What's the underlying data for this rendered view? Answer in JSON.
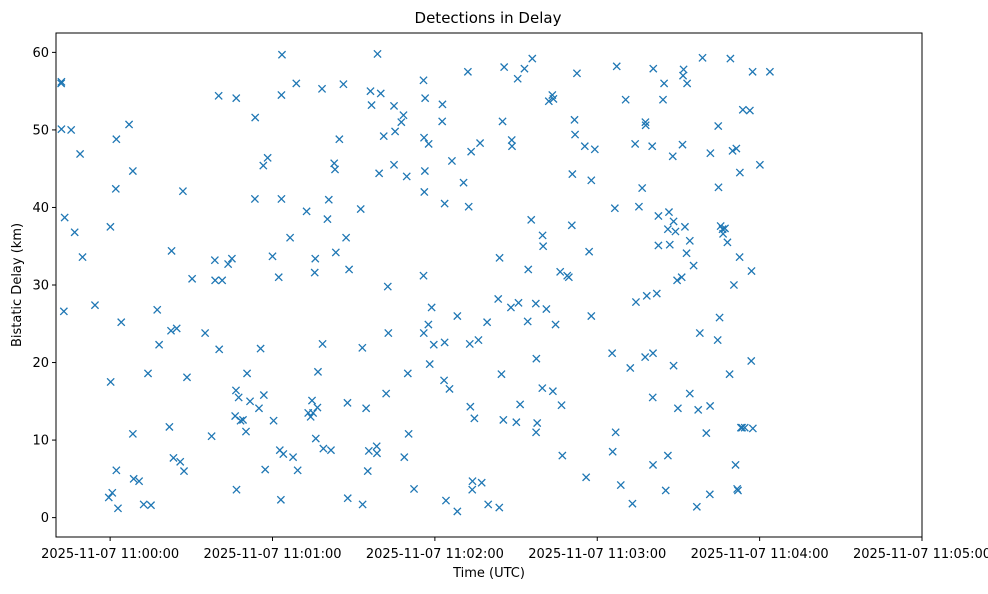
{
  "chart_data": {
    "type": "scatter",
    "title": "Detections in Delay",
    "xlabel": "Time (UTC)",
    "ylabel": "Bistatic Delay (km)",
    "x_unit": "seconds after 2025-11-07 11:00:00 UTC",
    "xlim": [
      -20,
      300
    ],
    "ylim": [
      -2.5,
      62.5
    ],
    "grid": false,
    "x_ticks": [
      {
        "value": 0,
        "label": "2025-11-07 11:00:00"
      },
      {
        "value": 60,
        "label": "2025-11-07 11:01:00"
      },
      {
        "value": 120,
        "label": "2025-11-07 11:02:00"
      },
      {
        "value": 180,
        "label": "2025-11-07 11:03:00"
      },
      {
        "value": 240,
        "label": "2025-11-07 11:04:00"
      },
      {
        "value": 300,
        "label": "2025-11-07 11:05:00"
      }
    ],
    "y_ticks": [
      0,
      10,
      20,
      30,
      40,
      50,
      60
    ],
    "marker": "x",
    "color": "#1f77b4",
    "series": [
      {
        "name": "",
        "points": [
          [
            -18.1,
            56.0
          ],
          [
            -18.0,
            50.1
          ],
          [
            -18.0,
            56.2
          ],
          [
            -17.1,
            26.6
          ],
          [
            -16.8,
            38.7
          ],
          [
            -14.4,
            50.0
          ],
          [
            -13.1,
            36.8
          ],
          [
            -11.1,
            46.9
          ],
          [
            -10.2,
            33.6
          ],
          [
            -5.6,
            27.4
          ],
          [
            -0.5,
            2.6
          ],
          [
            0.1,
            37.5
          ],
          [
            0.2,
            17.5
          ],
          [
            0.8,
            3.2
          ],
          [
            2.1,
            42.4
          ],
          [
            2.3,
            48.8
          ],
          [
            2.3,
            6.1
          ],
          [
            2.9,
            1.2
          ],
          [
            4.1,
            25.2
          ],
          [
            7.0,
            50.7
          ],
          [
            8.4,
            44.7
          ],
          [
            8.4,
            10.8
          ],
          [
            8.7,
            5.0
          ],
          [
            10.7,
            4.7
          ],
          [
            12.4,
            1.7
          ],
          [
            14.0,
            18.6
          ],
          [
            15.1,
            1.6
          ],
          [
            17.4,
            26.8
          ],
          [
            18.1,
            22.3
          ],
          [
            21.9,
            11.7
          ],
          [
            22.5,
            24.1
          ],
          [
            22.7,
            34.4
          ],
          [
            23.4,
            7.7
          ],
          [
            24.6,
            24.4
          ],
          [
            25.9,
            7.2
          ],
          [
            26.9,
            42.1
          ],
          [
            27.3,
            6.0
          ],
          [
            28.4,
            18.1
          ],
          [
            30.3,
            30.8
          ],
          [
            35.1,
            23.8
          ],
          [
            37.5,
            10.5
          ],
          [
            38.7,
            33.2
          ],
          [
            38.8,
            30.6
          ],
          [
            40.1,
            54.4
          ],
          [
            40.3,
            21.7
          ],
          [
            41.4,
            30.6
          ],
          [
            43.6,
            32.7
          ],
          [
            45.0,
            33.4
          ],
          [
            46.2,
            13.1
          ],
          [
            46.5,
            16.4
          ],
          [
            46.6,
            54.1
          ],
          [
            46.7,
            3.6
          ],
          [
            47.5,
            15.5
          ],
          [
            48.2,
            12.5
          ],
          [
            49.1,
            12.6
          ],
          [
            50.2,
            11.1
          ],
          [
            50.6,
            18.6
          ],
          [
            51.7,
            15.0
          ],
          [
            53.5,
            41.1
          ],
          [
            53.6,
            51.6
          ],
          [
            55.0,
            14.1
          ],
          [
            55.6,
            21.8
          ],
          [
            56.6,
            45.4
          ],
          [
            56.8,
            15.8
          ],
          [
            57.3,
            6.2
          ],
          [
            58.2,
            46.4
          ],
          [
            60.0,
            33.7
          ],
          [
            60.4,
            12.5
          ],
          [
            62.3,
            31.0
          ],
          [
            62.7,
            8.7
          ],
          [
            63.1,
            2.3
          ],
          [
            63.3,
            54.5
          ],
          [
            63.3,
            41.1
          ],
          [
            63.5,
            59.7
          ],
          [
            64.0,
            8.2
          ],
          [
            66.5,
            36.1
          ],
          [
            67.6,
            7.8
          ],
          [
            68.8,
            56.0
          ],
          [
            69.3,
            6.1
          ],
          [
            72.6,
            39.5
          ],
          [
            73.2,
            13.5
          ],
          [
            74.1,
            13.0
          ],
          [
            74.6,
            15.1
          ],
          [
            75.0,
            13.5
          ],
          [
            75.6,
            31.6
          ],
          [
            75.8,
            33.4
          ],
          [
            76.0,
            10.2
          ],
          [
            76.6,
            14.2
          ],
          [
            76.8,
            18.8
          ],
          [
            78.3,
            55.3
          ],
          [
            78.5,
            22.4
          ],
          [
            78.8,
            8.9
          ],
          [
            80.3,
            38.5
          ],
          [
            80.8,
            41.0
          ],
          [
            81.6,
            8.7
          ],
          [
            82.8,
            45.7
          ],
          [
            83.1,
            44.9
          ],
          [
            83.4,
            34.2
          ],
          [
            84.7,
            48.8
          ],
          [
            86.2,
            55.9
          ],
          [
            87.2,
            36.1
          ],
          [
            87.7,
            14.8
          ],
          [
            87.8,
            2.5
          ],
          [
            88.3,
            32.0
          ],
          [
            92.6,
            39.8
          ],
          [
            93.2,
            21.9
          ],
          [
            93.3,
            1.7
          ],
          [
            94.6,
            14.1
          ],
          [
            95.2,
            6.0
          ],
          [
            95.6,
            8.6
          ],
          [
            96.2,
            55.0
          ],
          [
            96.6,
            53.2
          ],
          [
            98.5,
            9.2
          ],
          [
            98.6,
            8.3
          ],
          [
            98.8,
            59.8
          ],
          [
            99.4,
            44.4
          ],
          [
            100.0,
            54.7
          ],
          [
            101.1,
            49.2
          ],
          [
            102.0,
            16.0
          ],
          [
            102.6,
            29.8
          ],
          [
            102.8,
            23.8
          ],
          [
            104.9,
            45.5
          ],
          [
            104.9,
            53.1
          ],
          [
            105.3,
            49.8
          ],
          [
            107.6,
            51.0
          ],
          [
            108.4,
            51.9
          ],
          [
            108.7,
            7.8
          ],
          [
            109.6,
            44.0
          ],
          [
            110.0,
            18.6
          ],
          [
            110.3,
            10.8
          ],
          [
            112.3,
            3.7
          ],
          [
            115.8,
            31.2
          ],
          [
            115.8,
            56.4
          ],
          [
            115.9,
            23.8
          ],
          [
            116.0,
            49.0
          ],
          [
            116.1,
            42.0
          ],
          [
            116.3,
            44.7
          ],
          [
            116.4,
            54.1
          ],
          [
            117.6,
            24.9
          ],
          [
            117.7,
            48.2
          ],
          [
            118.1,
            19.8
          ],
          [
            118.8,
            27.1
          ],
          [
            119.6,
            22.3
          ],
          [
            122.7,
            51.1
          ],
          [
            122.8,
            53.3
          ],
          [
            123.4,
            17.7
          ],
          [
            123.6,
            40.5
          ],
          [
            123.6,
            22.6
          ],
          [
            124.1,
            2.2
          ],
          [
            125.4,
            16.6
          ],
          [
            126.3,
            46.0
          ],
          [
            128.3,
            0.8
          ],
          [
            128.3,
            26.0
          ],
          [
            130.6,
            43.2
          ],
          [
            132.2,
            57.5
          ],
          [
            132.5,
            40.1
          ],
          [
            132.9,
            22.4
          ],
          [
            133.1,
            14.3
          ],
          [
            133.4,
            47.2
          ],
          [
            133.8,
            3.6
          ],
          [
            133.9,
            4.7
          ],
          [
            134.6,
            12.8
          ],
          [
            136.1,
            22.9
          ],
          [
            136.7,
            48.3
          ],
          [
            137.3,
            4.5
          ],
          [
            139.3,
            25.2
          ],
          [
            139.7,
            1.7
          ],
          [
            143.4,
            28.2
          ],
          [
            143.8,
            1.3
          ],
          [
            143.9,
            33.5
          ],
          [
            144.6,
            18.5
          ],
          [
            145.0,
            51.1
          ],
          [
            145.3,
            12.6
          ],
          [
            145.6,
            58.1
          ],
          [
            148.1,
            27.1
          ],
          [
            148.4,
            48.7
          ],
          [
            148.5,
            47.9
          ],
          [
            150.1,
            12.3
          ],
          [
            150.6,
            56.6
          ],
          [
            150.9,
            27.7
          ],
          [
            151.5,
            14.6
          ],
          [
            153.1,
            57.9
          ],
          [
            154.3,
            25.3
          ],
          [
            154.5,
            32.0
          ],
          [
            155.6,
            38.4
          ],
          [
            156.0,
            59.2
          ],
          [
            157.3,
            27.6
          ],
          [
            157.4,
            11.0
          ],
          [
            157.5,
            20.5
          ],
          [
            157.8,
            12.2
          ],
          [
            159.7,
            16.7
          ],
          [
            159.8,
            36.4
          ],
          [
            160.0,
            35.0
          ],
          [
            161.2,
            26.9
          ],
          [
            162.1,
            53.7
          ],
          [
            163.4,
            54.5
          ],
          [
            163.6,
            16.3
          ],
          [
            163.8,
            54.0
          ],
          [
            164.6,
            24.9
          ],
          [
            166.3,
            31.7
          ],
          [
            166.8,
            14.5
          ],
          [
            167.1,
            8.0
          ],
          [
            168.9,
            31.2
          ],
          [
            169.5,
            31.0
          ],
          [
            170.6,
            37.7
          ],
          [
            170.8,
            44.3
          ],
          [
            171.6,
            51.3
          ],
          [
            171.8,
            49.4
          ],
          [
            172.5,
            57.3
          ],
          [
            175.4,
            47.9
          ],
          [
            175.9,
            5.2
          ],
          [
            177.0,
            34.3
          ],
          [
            177.8,
            26.0
          ],
          [
            177.8,
            43.5
          ],
          [
            179.1,
            47.5
          ],
          [
            185.5,
            21.2
          ],
          [
            185.7,
            8.5
          ],
          [
            186.5,
            39.9
          ],
          [
            186.8,
            11.0
          ],
          [
            187.2,
            58.2
          ],
          [
            188.7,
            4.2
          ],
          [
            190.5,
            53.9
          ],
          [
            192.2,
            19.3
          ],
          [
            193.0,
            1.8
          ],
          [
            194.0,
            48.2
          ],
          [
            194.3,
            27.8
          ],
          [
            195.4,
            40.1
          ],
          [
            196.6,
            42.5
          ],
          [
            197.7,
            20.7
          ],
          [
            197.8,
            51.0
          ],
          [
            197.9,
            50.6
          ],
          [
            198.3,
            28.6
          ],
          [
            200.3,
            47.9
          ],
          [
            200.5,
            15.5
          ],
          [
            200.6,
            21.2
          ],
          [
            200.7,
            57.9
          ],
          [
            200.6,
            6.8
          ],
          [
            202.0,
            28.9
          ],
          [
            202.6,
            35.1
          ],
          [
            202.6,
            38.9
          ],
          [
            204.3,
            53.9
          ],
          [
            204.7,
            56.0
          ],
          [
            205.3,
            3.5
          ],
          [
            206.1,
            37.2
          ],
          [
            206.1,
            8.0
          ],
          [
            206.5,
            39.4
          ],
          [
            206.8,
            35.2
          ],
          [
            207.9,
            46.6
          ],
          [
            208.2,
            19.6
          ],
          [
            208.2,
            38.2
          ],
          [
            208.9,
            36.9
          ],
          [
            209.5,
            30.6
          ],
          [
            209.8,
            14.1
          ],
          [
            211.2,
            31.0
          ],
          [
            211.5,
            48.1
          ],
          [
            211.7,
            57.0
          ],
          [
            211.9,
            57.8
          ],
          [
            212.4,
            37.5
          ],
          [
            213.0,
            34.1
          ],
          [
            213.2,
            56.0
          ],
          [
            214.2,
            16.0
          ],
          [
            214.2,
            35.7
          ],
          [
            215.6,
            32.5
          ],
          [
            216.8,
            1.4
          ],
          [
            217.3,
            13.9
          ],
          [
            217.9,
            23.8
          ],
          [
            218.9,
            59.3
          ],
          [
            220.3,
            10.9
          ],
          [
            221.6,
            3.0
          ],
          [
            221.8,
            47.0
          ],
          [
            221.7,
            14.4
          ],
          [
            224.7,
            50.5
          ],
          [
            224.8,
            42.6
          ],
          [
            224.5,
            22.9
          ],
          [
            225.2,
            25.8
          ],
          [
            225.6,
            37.6
          ],
          [
            226.3,
            37.2
          ],
          [
            226.5,
            36.6
          ],
          [
            227.2,
            37.3
          ],
          [
            228.1,
            35.5
          ],
          [
            228.9,
            18.5
          ],
          [
            229.2,
            59.2
          ],
          [
            230.0,
            47.3
          ],
          [
            230.5,
            30.0
          ],
          [
            231.4,
            47.6
          ],
          [
            231.1,
            6.8
          ],
          [
            231.7,
            3.7
          ],
          [
            232.0,
            3.5
          ],
          [
            232.6,
            33.6
          ],
          [
            232.7,
            44.5
          ],
          [
            233.1,
            11.6
          ],
          [
            233.5,
            11.6
          ],
          [
            233.8,
            52.6
          ],
          [
            234.5,
            11.6
          ],
          [
            236.4,
            52.5
          ],
          [
            236.9,
            20.2
          ],
          [
            237.0,
            31.8
          ],
          [
            237.4,
            57.5
          ],
          [
            237.5,
            11.5
          ],
          [
            240.1,
            45.5
          ],
          [
            243.8,
            57.5
          ]
        ]
      }
    ]
  }
}
